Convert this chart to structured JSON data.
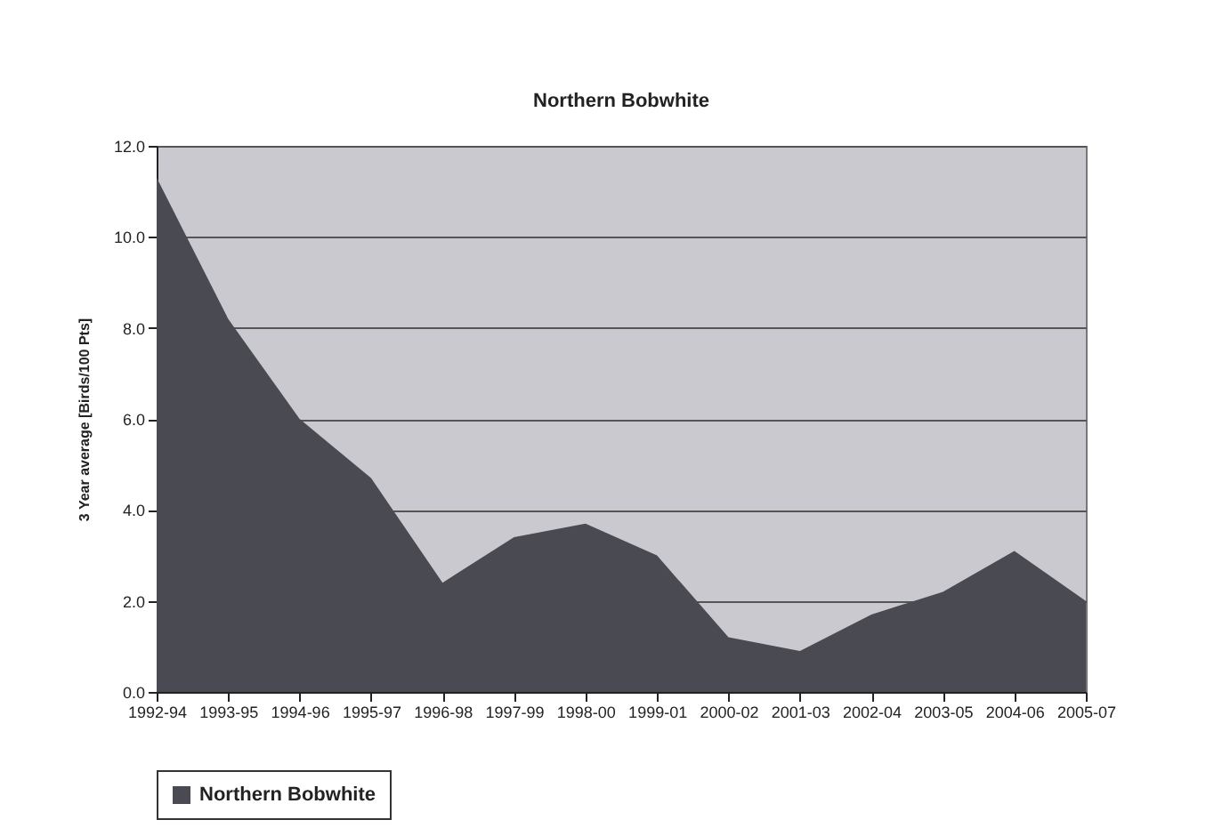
{
  "chart_data": {
    "type": "area",
    "title": "Northern Bobwhite",
    "ylabel": "3 Year average [Birds/100 Pts]",
    "categories": [
      "1992-94",
      "1993-95",
      "1994-96",
      "1995-97",
      "1996-98",
      "1997-99",
      "1998-00",
      "1999-01",
      "2000-02",
      "2001-03",
      "2002-04",
      "2003-05",
      "2004-06",
      "2005-07"
    ],
    "series": [
      {
        "name": "Northern Bobwhite",
        "color": "#4a4a52",
        "values": [
          11.3,
          8.2,
          6.0,
          4.7,
          2.4,
          3.4,
          3.7,
          3.0,
          1.2,
          0.9,
          1.7,
          2.2,
          3.1,
          2.0
        ]
      }
    ],
    "ylim": [
      0,
      12
    ],
    "yticks": [
      {
        "value": 0,
        "label": "0.0"
      },
      {
        "value": 2,
        "label": "2.0"
      },
      {
        "value": 4,
        "label": "4.0"
      },
      {
        "value": 6,
        "label": "6.0"
      },
      {
        "value": 8,
        "label": "8.0"
      },
      {
        "value": 10,
        "label": "10.0"
      },
      {
        "value": 12,
        "label": "12.0"
      }
    ],
    "grid": "y",
    "legend": "bottom"
  }
}
